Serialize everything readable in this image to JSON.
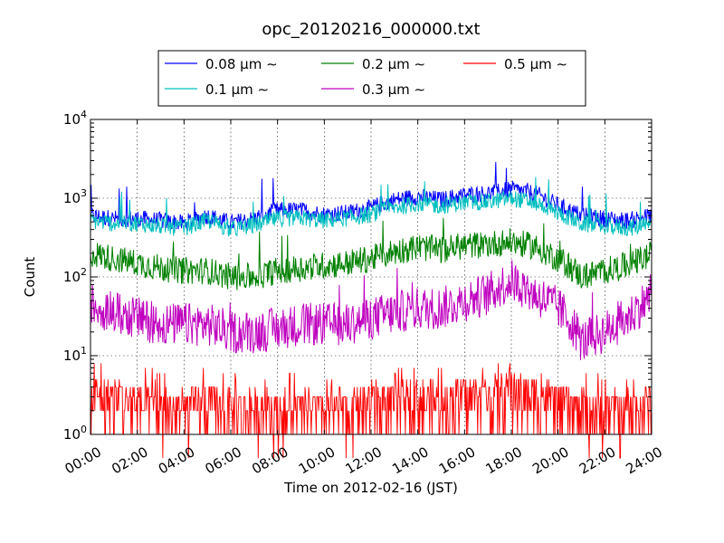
{
  "chart_data": {
    "type": "line",
    "title": "opc_20120216_000000.txt",
    "xlabel": "Time on 2012-02-16 (JST)",
    "ylabel": "Count",
    "y_scale": "log",
    "grid": true,
    "legend_placement": "top-center",
    "xlim": [
      "00:00",
      "24:00"
    ],
    "ylim": [
      1,
      10000
    ],
    "x_tick_labels": [
      "00:00",
      "02:00",
      "04:00",
      "06:00",
      "08:00",
      "10:00",
      "12:00",
      "14:00",
      "16:00",
      "18:00",
      "20:00",
      "22:00",
      "24:00"
    ],
    "y_ticks": [
      {
        "base": "10",
        "exp": "0",
        "value": 1
      },
      {
        "base": "10",
        "exp": "1",
        "value": 10
      },
      {
        "base": "10",
        "exp": "2",
        "value": 100
      },
      {
        "base": "10",
        "exp": "3",
        "value": 1000
      },
      {
        "base": "10",
        "exp": "4",
        "value": 10000
      }
    ],
    "x": [
      "00:00",
      "01:00",
      "02:00",
      "03:00",
      "04:00",
      "05:00",
      "06:00",
      "07:00",
      "08:00",
      "09:00",
      "10:00",
      "11:00",
      "12:00",
      "13:00",
      "14:00",
      "15:00",
      "16:00",
      "17:00",
      "18:00",
      "19:00",
      "20:00",
      "21:00",
      "22:00",
      "23:00",
      "24:00"
    ],
    "series": [
      {
        "name": "0.08 μm ∼",
        "color": "#0000ff",
        "values": [
          600,
          550,
          550,
          520,
          480,
          600,
          480,
          550,
          700,
          700,
          620,
          650,
          750,
          950,
          1050,
          950,
          1100,
          1150,
          1300,
          1150,
          800,
          600,
          550,
          520,
          600
        ]
      },
      {
        "name": "0.1 μm ∼",
        "color": "#00bfbf",
        "values": [
          520,
          480,
          480,
          440,
          420,
          520,
          400,
          450,
          550,
          560,
          520,
          560,
          620,
          760,
          860,
          800,
          880,
          900,
          1000,
          880,
          650,
          470,
          440,
          420,
          450
        ]
      },
      {
        "name": "0.2 μm ∼",
        "color": "#008000",
        "values": [
          200,
          170,
          150,
          130,
          120,
          120,
          100,
          100,
          120,
          130,
          140,
          150,
          170,
          210,
          240,
          220,
          250,
          260,
          280,
          240,
          170,
          100,
          120,
          140,
          190
        ]
      },
      {
        "name": "0.3 μm ∼",
        "color": "#bf00bf",
        "values": [
          45,
          35,
          30,
          25,
          25,
          25,
          20,
          20,
          22,
          25,
          25,
          25,
          30,
          35,
          40,
          40,
          50,
          60,
          90,
          60,
          40,
          15,
          20,
          30,
          55
        ]
      },
      {
        "name": "0.5 μm ∼",
        "color": "#ff0000",
        "values": [
          3,
          3,
          2.5,
          2,
          2,
          2.5,
          2,
          2,
          2,
          2,
          2,
          2,
          2.5,
          2.5,
          3,
          2.5,
          3,
          3,
          3.5,
          3,
          2.5,
          2,
          2,
          2,
          2.5
        ]
      }
    ]
  }
}
